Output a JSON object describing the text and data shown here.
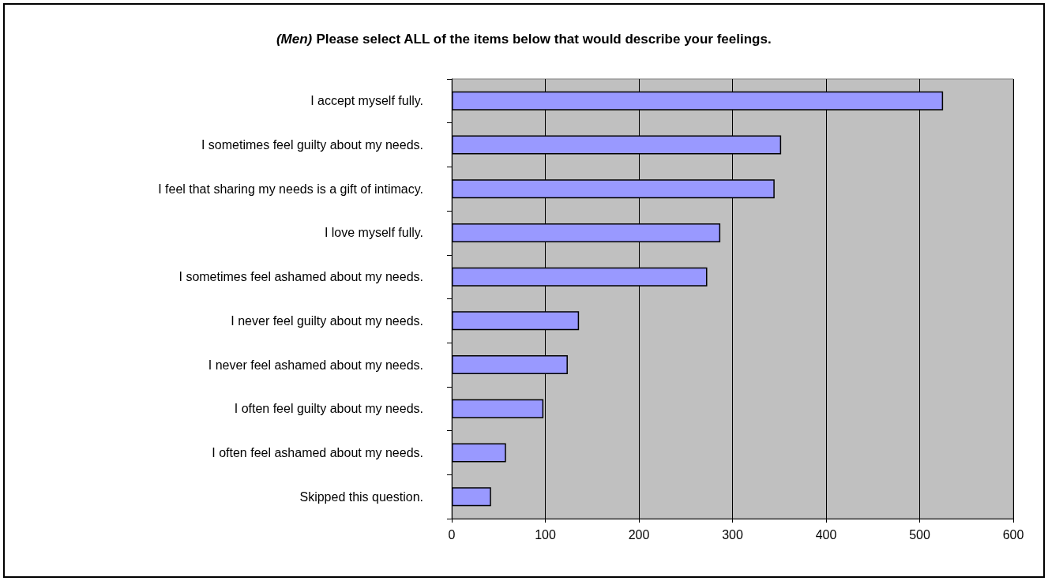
{
  "chart_data": {
    "type": "bar",
    "orientation": "horizontal",
    "title": "(Men) Please select ALL of the items below that would describe your feelings.",
    "categories": [
      "I accept myself fully.",
      "I sometimes feel guilty about my needs.",
      "I feel that sharing my needs is a gift of intimacy.",
      "I love myself fully.",
      "I sometimes feel ashamed about my needs.",
      "I never feel guilty about my needs.",
      "I never feel ashamed about my needs.",
      "I often feel guilty about my needs.",
      "I often feel ashamed about my needs.",
      "Skipped this question."
    ],
    "values": [
      525,
      352,
      345,
      287,
      273,
      136,
      124,
      98,
      58,
      42
    ],
    "color": "#9999ff",
    "xlim": [
      0,
      600
    ],
    "xticks": [
      0,
      100,
      200,
      300,
      400,
      500,
      600
    ],
    "grid": "x"
  }
}
